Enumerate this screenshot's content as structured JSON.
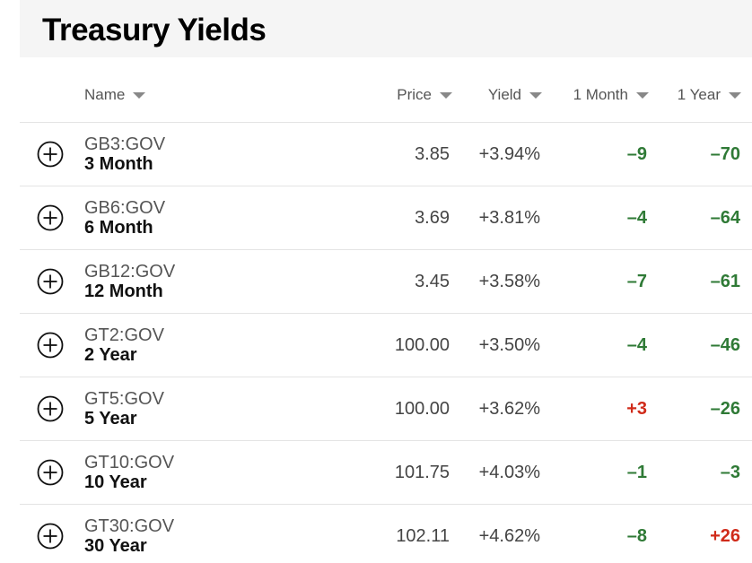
{
  "title": "Treasury Yields",
  "colors": {
    "negative_change": "#2f7a36",
    "positive_change": "#d02b1a",
    "title_bar_bg": "#f5f5f5"
  },
  "icons": {
    "row_add": "plus-circle-icon",
    "sort": "caret-down-icon"
  },
  "columns": {
    "name": "Name",
    "price": "Price",
    "yield": "Yield",
    "one_month": "1 Month",
    "one_year": "1 Year"
  },
  "rows": [
    {
      "symbol": "GB3:GOV",
      "name": "3 Month",
      "price": "3.85",
      "yield": "+3.94%",
      "one_month": "–9",
      "one_year": "–70"
    },
    {
      "symbol": "GB6:GOV",
      "name": "6 Month",
      "price": "3.69",
      "yield": "+3.81%",
      "one_month": "–4",
      "one_year": "–64"
    },
    {
      "symbol": "GB12:GOV",
      "name": "12 Month",
      "price": "3.45",
      "yield": "+3.58%",
      "one_month": "–7",
      "one_year": "–61"
    },
    {
      "symbol": "GT2:GOV",
      "name": "2 Year",
      "price": "100.00",
      "yield": "+3.50%",
      "one_month": "–4",
      "one_year": "–46"
    },
    {
      "symbol": "GT5:GOV",
      "name": "5 Year",
      "price": "100.00",
      "yield": "+3.62%",
      "one_month": "+3",
      "one_year": "–26"
    },
    {
      "symbol": "GT10:GOV",
      "name": "10 Year",
      "price": "101.75",
      "yield": "+4.03%",
      "one_month": "–1",
      "one_year": "–3"
    },
    {
      "symbol": "GT30:GOV",
      "name": "30 Year",
      "price": "102.11",
      "yield": "+4.62%",
      "one_month": "–8",
      "one_year": "+26"
    }
  ]
}
